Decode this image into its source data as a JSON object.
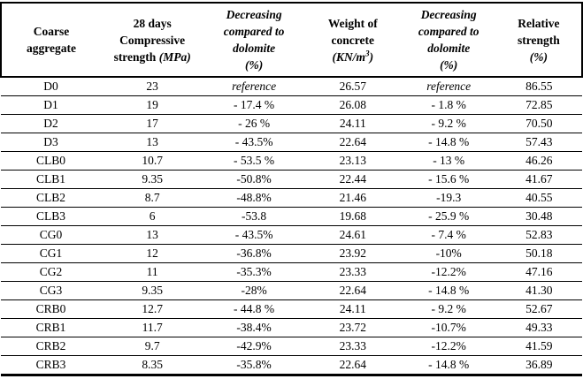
{
  "table": {
    "reference_label": "reference",
    "colors": {
      "border": "#000000",
      "text": "#000000",
      "background": "#ffffff"
    },
    "headers": [
      {
        "id": "coarse-aggregate",
        "label": "Coarse aggregate",
        "lines": [
          [
            {
              "t": "Coarse"
            }
          ],
          [
            {
              "t": "aggregate"
            }
          ]
        ]
      },
      {
        "id": "compressive-strength",
        "label": "28 days Compressive strength (MPa)",
        "lines": [
          [
            {
              "t": "28 days"
            }
          ],
          [
            {
              "t": "Compressive"
            }
          ],
          [
            {
              "t": "strength "
            },
            {
              "t": "(MPa)",
              "i": true
            }
          ]
        ]
      },
      {
        "id": "decreasing-vs-dolomite-strength",
        "label": "Decreasing compared to dolomite (%)",
        "lines": [
          [
            {
              "t": "Decreasing",
              "i": true
            }
          ],
          [
            {
              "t": "compared to",
              "i": true
            }
          ],
          [
            {
              "t": "dolomite",
              "i": true
            }
          ],
          [
            {
              "t": "(%)",
              "i": true
            }
          ]
        ]
      },
      {
        "id": "weight-of-concrete",
        "label": "Weight of concrete (KN/m3)",
        "lines": [
          [
            {
              "t": "Weight of"
            }
          ],
          [
            {
              "t": "concrete"
            }
          ],
          [
            {
              "t": "(KN/m",
              "i": true
            },
            {
              "t": "3",
              "i": true,
              "sup": true
            },
            {
              "t": ")",
              "i": true
            }
          ]
        ]
      },
      {
        "id": "decreasing-vs-dolomite-weight",
        "label": "Decreasing compared to dolomite (%)",
        "lines": [
          [
            {
              "t": "Decreasing",
              "i": true
            }
          ],
          [
            {
              "t": "compared to",
              "i": true
            }
          ],
          [
            {
              "t": "dolomite",
              "i": true
            }
          ],
          [
            {
              "t": "(%)",
              "i": true
            }
          ]
        ]
      },
      {
        "id": "relative-strength",
        "label": "Relative strength (%)",
        "lines": [
          [
            {
              "t": "Relative"
            }
          ],
          [
            {
              "t": "strength"
            }
          ],
          [
            {
              "t": "(%)",
              "i": true
            }
          ]
        ]
      }
    ],
    "rows": [
      [
        "D0",
        "23",
        "reference",
        "26.57",
        "reference",
        "86.55"
      ],
      [
        "D1",
        "19",
        "- 17.4 %",
        "26.08",
        "- 1.8 %",
        "72.85"
      ],
      [
        "D2",
        "17",
        "- 26 %",
        "24.11",
        "- 9.2 %",
        "70.50"
      ],
      [
        "D3",
        "13",
        "- 43.5%",
        "22.64",
        "- 14.8 %",
        "57.43"
      ],
      [
        "CLB0",
        "10.7",
        "- 53.5 %",
        "23.13",
        "- 13 %",
        "46.26"
      ],
      [
        "CLB1",
        "9.35",
        "-50.8%",
        "22.44",
        "- 15.6 %",
        "41.67"
      ],
      [
        "CLB2",
        "8.7",
        "-48.8%",
        "21.46",
        "-19.3",
        "40.55"
      ],
      [
        "CLB3",
        "6",
        "-53.8",
        "19.68",
        "- 25.9 %",
        "30.48"
      ],
      [
        "CG0",
        "13",
        "- 43.5%",
        "24.61",
        "- 7.4 %",
        "52.83"
      ],
      [
        "CG1",
        "12",
        "-36.8%",
        "23.92",
        "-10%",
        "50.18"
      ],
      [
        "CG2",
        "11",
        "-35.3%",
        "23.33",
        "-12.2%",
        "47.16"
      ],
      [
        "CG3",
        "9.35",
        "-28%",
        "22.64",
        "- 14.8 %",
        "41.30"
      ],
      [
        "CRB0",
        "12.7",
        "- 44.8 %",
        "24.11",
        "- 9.2 %",
        "52.67"
      ],
      [
        "CRB1",
        "11.7",
        "-38.4%",
        "23.72",
        "-10.7%",
        "49.33"
      ],
      [
        "CRB2",
        "9.7",
        "-42.9%",
        "23.33",
        "-12.2%",
        "41.59"
      ],
      [
        "CRB3",
        "8.35",
        "-35.8%",
        "22.64",
        "- 14.8 %",
        "36.89"
      ]
    ]
  }
}
